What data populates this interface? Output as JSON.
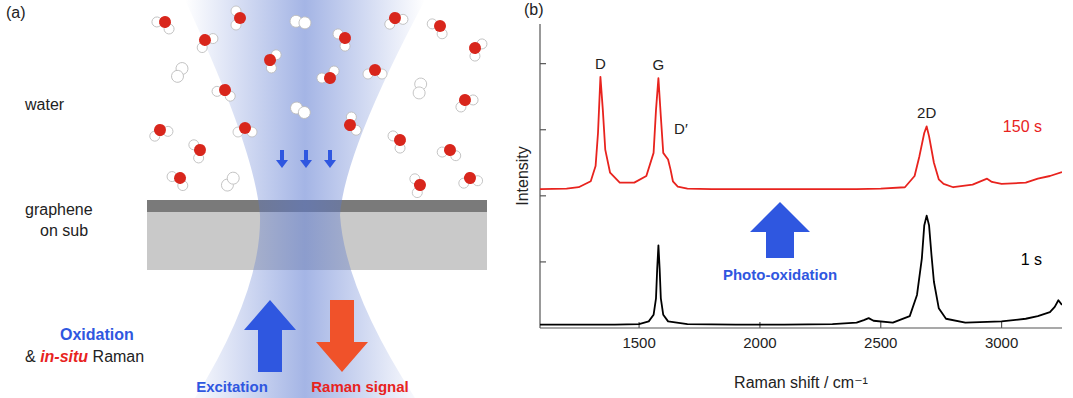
{
  "panel_a": {
    "label": "(a)",
    "water": "water",
    "substrate": [
      "graphene",
      "on sub"
    ],
    "oxidation": "Oxidation",
    "in_situ": [
      "& ",
      "in-situ",
      " Raman"
    ],
    "excitation": "Excitation",
    "raman_signal": "Raman signal"
  },
  "chart_data": {
    "type": "line",
    "label": "(b)",
    "x_label": "Raman shift / cm⁻¹",
    "y_label": "Intensity",
    "xlim": [
      1090,
      3250
    ],
    "ylim": [
      0,
      4.6
    ],
    "xticks": [
      1500,
      2000,
      2500,
      3000
    ],
    "yticks": [
      1,
      2,
      3,
      4
    ],
    "tick_labels": "x",
    "series": [
      {
        "name": "150 s",
        "color": "#e8231e",
        "x": [
          1090,
          1200,
          1250,
          1300,
          1320,
          1330,
          1340,
          1350,
          1360,
          1380,
          1420,
          1480,
          1530,
          1560,
          1570,
          1580,
          1590,
          1600,
          1610,
          1620,
          1630,
          1640,
          1660,
          1700,
          1800,
          2000,
          2200,
          2400,
          2500,
          2600,
          2640,
          2660,
          2680,
          2690,
          2700,
          2720,
          2740,
          2760,
          2800,
          2880,
          2920,
          2940,
          2960,
          3000,
          3100,
          3150,
          3200,
          3250
        ],
        "values": [
          2.1,
          2.11,
          2.13,
          2.22,
          2.45,
          2.95,
          3.8,
          3.3,
          2.7,
          2.35,
          2.2,
          2.2,
          2.3,
          2.65,
          3.3,
          3.78,
          3.2,
          2.65,
          2.6,
          2.55,
          2.4,
          2.22,
          2.14,
          2.11,
          2.1,
          2.1,
          2.1,
          2.1,
          2.11,
          2.13,
          2.3,
          2.6,
          2.95,
          3.05,
          2.9,
          2.5,
          2.25,
          2.18,
          2.13,
          2.17,
          2.23,
          2.26,
          2.21,
          2.18,
          2.2,
          2.26,
          2.3,
          2.36
        ]
      },
      {
        "name": "1 s",
        "color": "#000000",
        "x": [
          1090,
          1200,
          1300,
          1400,
          1500,
          1540,
          1560,
          1570,
          1575,
          1580,
          1585,
          1590,
          1600,
          1620,
          1700,
          1900,
          2100,
          2300,
          2400,
          2430,
          2450,
          2470,
          2550,
          2620,
          2650,
          2670,
          2680,
          2690,
          2700,
          2710,
          2720,
          2740,
          2770,
          2850,
          3000,
          3100,
          3150,
          3200,
          3220,
          3235,
          3250
        ],
        "values": [
          0.05,
          0.05,
          0.05,
          0.05,
          0.06,
          0.1,
          0.2,
          0.45,
          0.9,
          1.25,
          0.9,
          0.45,
          0.2,
          0.1,
          0.06,
          0.05,
          0.05,
          0.06,
          0.08,
          0.12,
          0.15,
          0.11,
          0.08,
          0.18,
          0.5,
          1.05,
          1.55,
          1.7,
          1.55,
          1.1,
          0.7,
          0.3,
          0.14,
          0.08,
          0.1,
          0.14,
          0.18,
          0.24,
          0.32,
          0.42,
          0.35
        ]
      }
    ],
    "annotations": [
      {
        "text": "D",
        "x": 1340
      },
      {
        "text": "G",
        "x": 1580
      },
      {
        "text": "D′",
        "x": 1620
      },
      {
        "text": "2D",
        "x": 2690
      },
      {
        "text": "Photo-oxidation"
      }
    ]
  }
}
